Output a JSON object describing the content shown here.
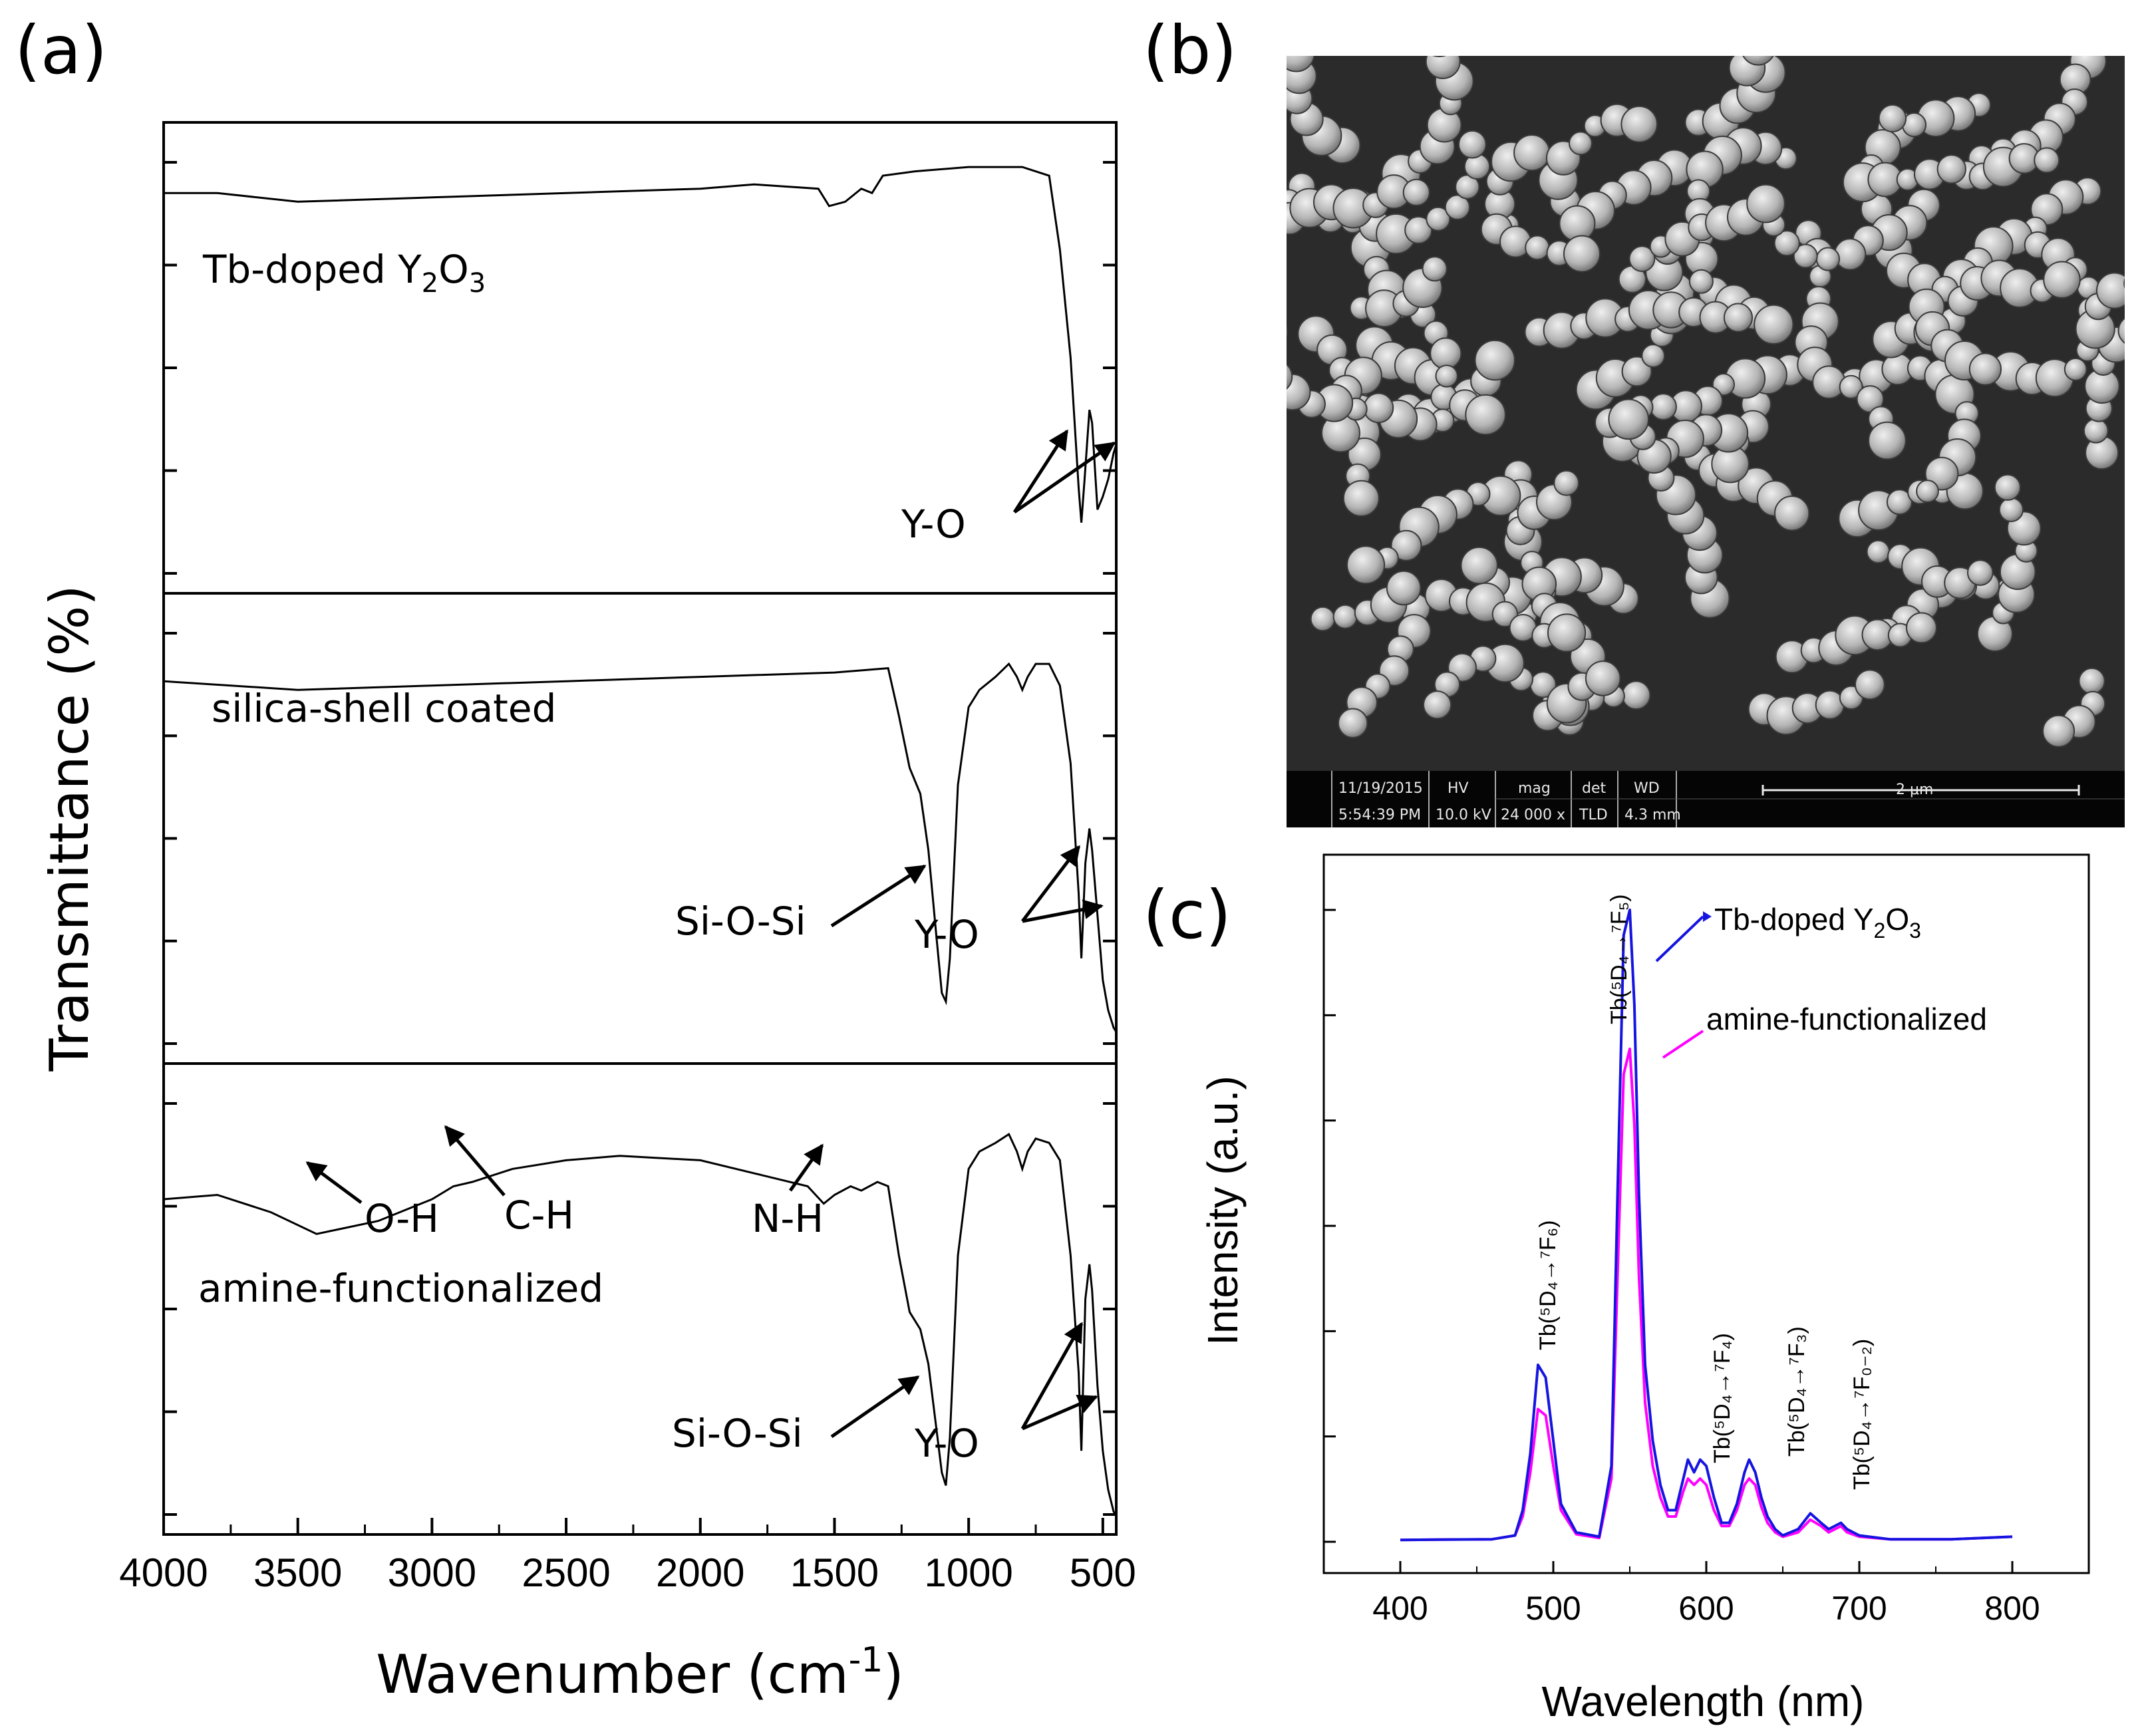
{
  "panels": {
    "a": "(a)",
    "b": "(b)",
    "c": "(c)"
  },
  "colors": {
    "blue": "#1515e0",
    "magenta": "#ff00ff",
    "black": "#000000",
    "sem_bg": "#2b2b2b"
  },
  "chart_data": [
    {
      "type": "line",
      "panel": "a",
      "xlabel": "Wavenumber (cm",
      "xlabel_sup": "-1",
      "xlabel_end": ")",
      "ylabel": "Transmittance (%)",
      "xlim": [
        4000,
        450
      ],
      "x_reversed": true,
      "xticks": [
        "4000",
        "3500",
        "3000",
        "2500",
        "2000",
        "1500",
        "1000",
        "500"
      ],
      "subplots": [
        {
          "label": "Tb-doped Y",
          "label_sub1": "2",
          "label_mid": "O",
          "label_sub2": "3",
          "annotations": {
            "yo": "Y-O"
          },
          "x": [
            4000,
            3800,
            3500,
            3000,
            2500,
            2000,
            1800,
            1560,
            1520,
            1460,
            1400,
            1360,
            1320,
            1200,
            1000,
            800,
            700,
            660,
            620,
            590,
            580,
            568,
            550,
            540,
            520,
            500,
            480,
            460,
            450
          ],
          "y": [
            0.88,
            0.88,
            0.86,
            0.87,
            0.88,
            0.89,
            0.9,
            0.89,
            0.85,
            0.86,
            0.89,
            0.88,
            0.92,
            0.93,
            0.94,
            0.94,
            0.92,
            0.75,
            0.5,
            0.2,
            0.12,
            0.22,
            0.38,
            0.35,
            0.15,
            0.18,
            0.22,
            0.28,
            0.3
          ]
        },
        {
          "label": "silica-shell coated",
          "annotations": {
            "sio": "Si-O-Si",
            "yo": "Y-O"
          },
          "x": [
            4000,
            3500,
            3000,
            2500,
            2000,
            1500,
            1300,
            1260,
            1220,
            1180,
            1150,
            1120,
            1100,
            1085,
            1070,
            1040,
            1000,
            960,
            900,
            850,
            820,
            800,
            780,
            750,
            700,
            660,
            620,
            590,
            580,
            565,
            550,
            540,
            520,
            500,
            480,
            460,
            450
          ],
          "y": [
            0.84,
            0.82,
            0.83,
            0.84,
            0.85,
            0.86,
            0.87,
            0.76,
            0.64,
            0.58,
            0.45,
            0.25,
            0.12,
            0.1,
            0.2,
            0.6,
            0.78,
            0.82,
            0.85,
            0.88,
            0.85,
            0.82,
            0.85,
            0.88,
            0.88,
            0.83,
            0.65,
            0.35,
            0.2,
            0.42,
            0.5,
            0.45,
            0.3,
            0.15,
            0.08,
            0.04,
            0.03
          ]
        },
        {
          "label": "amine-functionalized",
          "annotations": {
            "oh": "O-H",
            "ch": "C-H",
            "nh": "N-H",
            "sio": "Si-O-Si",
            "yo": "Y-O"
          },
          "x": [
            4000,
            3800,
            3600,
            3430,
            3200,
            3000,
            2920,
            2850,
            2700,
            2500,
            2300,
            2000,
            1800,
            1600,
            1540,
            1500,
            1440,
            1400,
            1340,
            1300,
            1260,
            1220,
            1180,
            1150,
            1120,
            1100,
            1085,
            1070,
            1040,
            1000,
            960,
            900,
            850,
            820,
            800,
            780,
            750,
            700,
            660,
            620,
            590,
            580,
            565,
            550,
            540,
            520,
            500,
            480,
            460,
            450
          ],
          "y": [
            0.73,
            0.74,
            0.7,
            0.65,
            0.68,
            0.73,
            0.76,
            0.77,
            0.8,
            0.82,
            0.83,
            0.82,
            0.79,
            0.76,
            0.72,
            0.74,
            0.76,
            0.75,
            0.77,
            0.76,
            0.6,
            0.47,
            0.43,
            0.35,
            0.2,
            0.1,
            0.07,
            0.18,
            0.6,
            0.8,
            0.84,
            0.86,
            0.88,
            0.84,
            0.8,
            0.84,
            0.87,
            0.86,
            0.82,
            0.6,
            0.33,
            0.15,
            0.5,
            0.58,
            0.52,
            0.3,
            0.15,
            0.06,
            0.01,
            0.0
          ]
        }
      ]
    },
    {
      "type": "image",
      "panel": "b",
      "info_bar": {
        "date": "11/19/2015",
        "time": "5:54:39 PM",
        "hv_label": "HV",
        "hv": "10.0 kV",
        "mag_label": "mag",
        "mag": "24 000 x",
        "det_label": "det",
        "det": "TLD",
        "wd_label": "WD",
        "wd": "4.3 mm",
        "scale": "2 μm"
      }
    },
    {
      "type": "line",
      "panel": "c",
      "xlabel": "Wavelength (nm)",
      "ylabel": "Intensity (a.u.)",
      "xlim": [
        350,
        850
      ],
      "ylim": [
        0,
        1.0
      ],
      "xticks": [
        400,
        500,
        600,
        700,
        800
      ],
      "legend": [
        {
          "text": "Tb-doped Y",
          "sub1": "2",
          "mid": "O",
          "sub2": "3"
        },
        {
          "text": "amine-functionalized"
        }
      ],
      "peak_labels": [
        "Tb(⁵D₄→⁷F₆)",
        "Tb(⁵D₄→⁷F₅)",
        "Tb(⁵D₄→⁷F₄)",
        "Tb(⁵D₄→⁷F₃)",
        "Tb(⁵D₄→⁷F₀₋₂)"
      ],
      "series": [
        {
          "color": "#1515e0",
          "x": [
            400,
            460,
            475,
            480,
            485,
            490,
            495,
            500,
            505,
            515,
            530,
            538,
            542,
            546,
            550,
            553,
            556,
            560,
            565,
            570,
            575,
            580,
            585,
            588,
            592,
            596,
            600,
            605,
            610,
            615,
            620,
            625,
            628,
            632,
            636,
            640,
            645,
            650,
            660,
            668,
            675,
            680,
            688,
            692,
            700,
            720,
            760,
            800
          ],
          "y": [
            0.003,
            0.004,
            0.01,
            0.05,
            0.14,
            0.28,
            0.26,
            0.16,
            0.06,
            0.015,
            0.008,
            0.12,
            0.55,
            0.96,
            1.0,
            0.85,
            0.55,
            0.28,
            0.16,
            0.09,
            0.05,
            0.05,
            0.1,
            0.13,
            0.11,
            0.13,
            0.12,
            0.07,
            0.03,
            0.03,
            0.06,
            0.11,
            0.13,
            0.11,
            0.07,
            0.04,
            0.02,
            0.01,
            0.02,
            0.045,
            0.03,
            0.02,
            0.03,
            0.02,
            0.01,
            0.004,
            0.004,
            0.008
          ]
        },
        {
          "color": "#ff00ff",
          "x": [
            400,
            460,
            475,
            480,
            485,
            490,
            495,
            500,
            505,
            515,
            530,
            538,
            542,
            546,
            550,
            553,
            556,
            560,
            565,
            570,
            575,
            580,
            585,
            588,
            592,
            596,
            600,
            605,
            610,
            615,
            620,
            625,
            628,
            632,
            636,
            640,
            645,
            650,
            660,
            668,
            675,
            680,
            688,
            692,
            700,
            720,
            760,
            800
          ],
          "y": [
            0.003,
            0.004,
            0.01,
            0.04,
            0.11,
            0.21,
            0.2,
            0.12,
            0.05,
            0.012,
            0.006,
            0.1,
            0.42,
            0.74,
            0.78,
            0.66,
            0.42,
            0.22,
            0.12,
            0.07,
            0.04,
            0.04,
            0.08,
            0.1,
            0.09,
            0.1,
            0.09,
            0.05,
            0.025,
            0.025,
            0.05,
            0.09,
            0.1,
            0.09,
            0.055,
            0.03,
            0.015,
            0.008,
            0.015,
            0.035,
            0.025,
            0.015,
            0.025,
            0.015,
            0.008,
            0.004,
            0.004,
            0.008
          ]
        }
      ]
    }
  ]
}
